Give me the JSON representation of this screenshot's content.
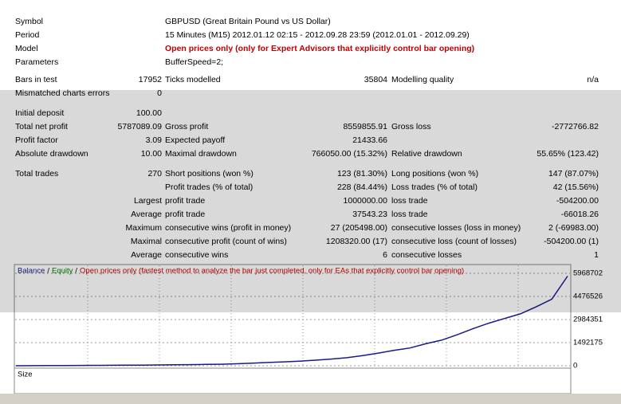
{
  "report": {
    "header_rows": [
      {
        "label": "Symbol",
        "value": "GBPUSD (Great Britain Pound vs US Dollar)"
      },
      {
        "label": "Period",
        "value": "15 Minutes (M15) 2012.01.12 02:15 - 2012.09.28 23:59 (2012.01.01 - 2012.09.29)"
      },
      {
        "label": "Model",
        "value": "Open prices only (only for Expert Advisors that explicitly control bar opening)",
        "emphasis": true
      },
      {
        "label": "Parameters",
        "value": "BufferSpeed=2;"
      }
    ],
    "stat_groups": [
      [
        [
          "Bars in test",
          "17952",
          "Ticks modelled",
          "35804",
          "Modelling quality",
          "n/a"
        ],
        [
          "Mismatched charts errors",
          "0",
          null,
          null,
          null,
          null
        ]
      ],
      [
        [
          "Initial deposit",
          "100.00",
          null,
          null,
          null,
          null
        ],
        [
          "Total net profit",
          "5787089.09",
          "Gross profit",
          "8559855.91",
          "Gross loss",
          "-2772766.82"
        ],
        [
          "Profit factor",
          "3.09",
          "Expected payoff",
          "21433.66",
          null,
          null
        ],
        [
          "Absolute drawdown",
          "10.00",
          "Maximal drawdown",
          "766050.00 (15.32%)",
          "Relative drawdown",
          "55.65% (123.42)"
        ]
      ],
      [
        [
          "Total trades",
          "270",
          "Short positions (won %)",
          "123 (81.30%)",
          "Long positions (won %)",
          "147 (87.07%)"
        ],
        [
          null,
          null,
          "Profit trades (% of total)",
          "228 (84.44%)",
          "Loss trades (% of total)",
          "42 (15.56%)"
        ],
        [
          null,
          "Largest",
          "profit trade",
          "1000000.00",
          "loss trade",
          "-504200.00"
        ],
        [
          null,
          "Average",
          "profit trade",
          "37543.23",
          "loss trade",
          "-66018.26"
        ],
        [
          null,
          "Maximum",
          "consecutive wins (profit in money)",
          "27 (205498.00)",
          "consecutive losses (loss in money)",
          "2 (-69983.00)"
        ],
        [
          null,
          "Maximal",
          "consecutive profit (count of wins)",
          "1208320.00 (17)",
          "consecutive loss (count of losses)",
          "-504200.00 (1)"
        ],
        [
          null,
          "Average",
          "consecutive wins",
          "6",
          "consecutive losses",
          "1"
        ]
      ]
    ]
  },
  "chart": {
    "type": "line",
    "legend_separator": "/",
    "series": [
      {
        "name": "Balance",
        "color": "#1a1a8a",
        "values": [
          100,
          5000,
          10000,
          15000,
          20000,
          25000,
          30000,
          35000,
          40000,
          50000,
          60000,
          70000,
          85000,
          100000,
          130000,
          170000,
          210000,
          250000,
          300000,
          360000,
          430000,
          520000,
          660000,
          820000,
          1000000,
          1150000,
          1420000,
          1650000,
          2000000,
          2400000,
          2750000,
          3050000,
          3350000,
          3800000,
          4300000,
          5787189
        ]
      }
    ],
    "legend_extra": [
      {
        "text": "Equity",
        "color": "#008000"
      },
      {
        "text": "Open prices only (fastest method to analyze the bar just completed, only for EAs that explicitly control bar opening)",
        "color": "#d00000"
      }
    ],
    "ylim": [
      0,
      5968702
    ],
    "yticks": [
      0,
      1492175,
      2984351,
      4476526,
      5968702
    ],
    "grid": true,
    "sub_panel_label": "Size"
  }
}
